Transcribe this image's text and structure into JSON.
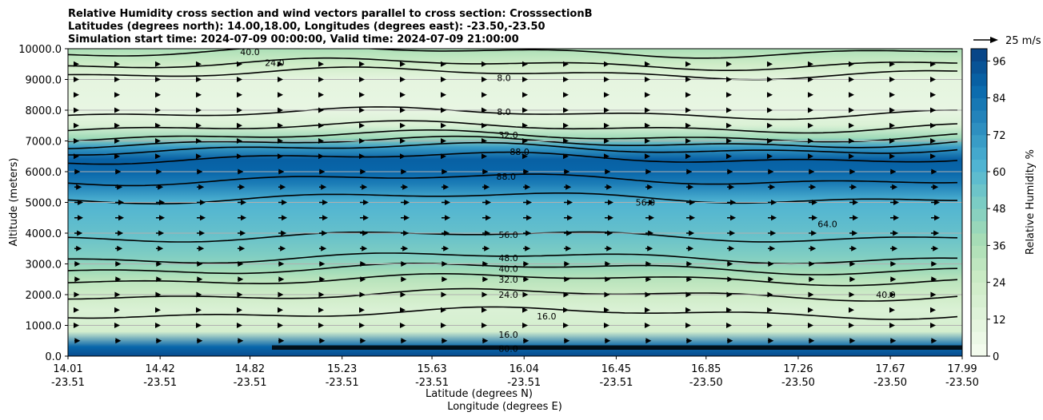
{
  "chart_data": {
    "type": "contourf",
    "title_lines": [
      "Relative Humidity cross section and wind vectors parallel to cross section: CrosssectionB",
      "Latitudes (degrees north): 14.00,18.00, Longitudes (degrees east): -23.50,-23.50",
      "Simulation start time: 2024-07-09 00:00:00, Valid time: 2024-07-09 21:00:00"
    ],
    "xlabel_lines": [
      "Latitude (degrees N)",
      "Longitude (degrees E)"
    ],
    "ylabel": "Altitude (meters)",
    "x_ticks": [
      {
        "lat": "14.01",
        "lon": "-23.51"
      },
      {
        "lat": "14.42",
        "lon": "-23.51"
      },
      {
        "lat": "14.82",
        "lon": "-23.51"
      },
      {
        "lat": "15.23",
        "lon": "-23.51"
      },
      {
        "lat": "15.63",
        "lon": "-23.51"
      },
      {
        "lat": "16.04",
        "lon": "-23.51"
      },
      {
        "lat": "16.45",
        "lon": "-23.51"
      },
      {
        "lat": "16.85",
        "lon": "-23.50"
      },
      {
        "lat": "17.26",
        "lon": "-23.50"
      },
      {
        "lat": "17.67",
        "lon": "-23.50"
      },
      {
        "lat": "17.99",
        "lon": "-23.50"
      }
    ],
    "x_range": [
      14.01,
      17.99
    ],
    "ylim": [
      0,
      10000
    ],
    "y_ticks": [
      "0.0",
      "1000.0",
      "2000.0",
      "3000.0",
      "4000.0",
      "5000.0",
      "6000.0",
      "7000.0",
      "8000.0",
      "9000.0",
      "10000.0"
    ],
    "y_tick_values": [
      0,
      1000,
      2000,
      3000,
      4000,
      5000,
      6000,
      7000,
      8000,
      9000,
      10000
    ],
    "grid": "horizontal",
    "colorbar": {
      "label": "Relative Humidity %",
      "ticks": [
        "0",
        "12",
        "24",
        "36",
        "48",
        "60",
        "72",
        "84",
        "96"
      ],
      "tick_values": [
        0,
        12,
        24,
        36,
        48,
        60,
        72,
        84,
        96
      ],
      "range": [
        0,
        100
      ],
      "levels": 25,
      "colormap": "GnBu"
    },
    "quiver_key": {
      "label": "25 m/s",
      "speed": 25
    },
    "rh_profile": [
      {
        "alt": 0,
        "rh": 96
      },
      {
        "alt": 300,
        "rh": 88
      },
      {
        "alt": 800,
        "rh": 20
      },
      {
        "alt": 1500,
        "rh": 16
      },
      {
        "alt": 2000,
        "rh": 24
      },
      {
        "alt": 2500,
        "rh": 32
      },
      {
        "alt": 2800,
        "rh": 40
      },
      {
        "alt": 3200,
        "rh": 48
      },
      {
        "alt": 4000,
        "rh": 56
      },
      {
        "alt": 5000,
        "rh": 62
      },
      {
        "alt": 5600,
        "rh": 80
      },
      {
        "alt": 6000,
        "rh": 88
      },
      {
        "alt": 6400,
        "rh": 90
      },
      {
        "alt": 6800,
        "rh": 70
      },
      {
        "alt": 7100,
        "rh": 40
      },
      {
        "alt": 7500,
        "rh": 16
      },
      {
        "alt": 8000,
        "rh": 8
      },
      {
        "alt": 9000,
        "rh": 10
      },
      {
        "alt": 9500,
        "rh": 24
      },
      {
        "alt": 10000,
        "rh": 36
      }
    ],
    "contours": [
      {
        "level": "16.0",
        "alt": 1400
      },
      {
        "level": "24.0",
        "alt": 2000
      },
      {
        "level": "32.0",
        "alt": 2500
      },
      {
        "level": "40.0",
        "alt": 2850
      },
      {
        "level": "48.0",
        "alt": 3200
      },
      {
        "level": "56.0",
        "alt": 3900
      },
      {
        "level": "64.0",
        "alt": 5150
      },
      {
        "level": "88.0",
        "alt": 5750
      },
      {
        "level": "88.0",
        "alt": 6450
      },
      {
        "level": "64.0",
        "alt": 6750
      },
      {
        "level": "48.0",
        "alt": 6950
      },
      {
        "level": "32.0",
        "alt": 7150
      },
      {
        "level": "16.0",
        "alt": 7450
      },
      {
        "level": "8.0",
        "alt": 7900
      },
      {
        "level": "8.0",
        "alt": 9200
      },
      {
        "level": "24.0",
        "alt": 9500
      },
      {
        "level": "40.0",
        "alt": 9900
      }
    ],
    "contour_labels": [
      {
        "text": "40.0",
        "lat": 14.82,
        "alt": 9900
      },
      {
        "text": "24.0",
        "lat": 14.93,
        "alt": 9550
      },
      {
        "text": "8.0",
        "lat": 15.95,
        "alt": 9050
      },
      {
        "text": "8.0",
        "lat": 15.95,
        "alt": 7950
      },
      {
        "text": "32.0",
        "lat": 15.97,
        "alt": 7200
      },
      {
        "text": "88.0",
        "lat": 16.02,
        "alt": 6650
      },
      {
        "text": "88.0",
        "lat": 15.96,
        "alt": 5850
      },
      {
        "text": "56.0",
        "lat": 16.58,
        "alt": 5000
      },
      {
        "text": "64.0",
        "lat": 17.39,
        "alt": 4300
      },
      {
        "text": "56.0",
        "lat": 15.97,
        "alt": 3950
      },
      {
        "text": "48.0",
        "lat": 15.97,
        "alt": 3200
      },
      {
        "text": "40.0",
        "lat": 15.97,
        "alt": 2850
      },
      {
        "text": "32.0",
        "lat": 15.97,
        "alt": 2500
      },
      {
        "text": "24.0",
        "lat": 15.97,
        "alt": 2000
      },
      {
        "text": "16.0",
        "lat": 16.14,
        "alt": 1300
      },
      {
        "text": "16.0",
        "lat": 15.97,
        "alt": 700
      },
      {
        "text": "80.0",
        "lat": 15.97,
        "alt": 250
      },
      {
        "text": "40.0",
        "lat": 17.65,
        "alt": 2000
      }
    ],
    "wind_rows": [
      {
        "alt": 500,
        "u": 8
      },
      {
        "alt": 1000,
        "u": 3
      },
      {
        "alt": 1500,
        "u": 4
      },
      {
        "alt": 2000,
        "u": 7
      },
      {
        "alt": 2500,
        "u": 8
      },
      {
        "alt": 3000,
        "u": 8
      },
      {
        "alt": 3500,
        "u": 10
      },
      {
        "alt": 4000,
        "u": 11
      },
      {
        "alt": 4500,
        "u": 12
      },
      {
        "alt": 5000,
        "u": 12
      },
      {
        "alt": 5500,
        "u": 10
      },
      {
        "alt": 6000,
        "u": 8
      },
      {
        "alt": 6500,
        "u": 6
      },
      {
        "alt": 7000,
        "u": 5
      },
      {
        "alt": 7500,
        "u": 3
      },
      {
        "alt": 8000,
        "u": 3
      },
      {
        "alt": 8500,
        "u": 2
      },
      {
        "alt": 9000,
        "u": 4
      },
      {
        "alt": 9500,
        "u": 6
      }
    ]
  }
}
